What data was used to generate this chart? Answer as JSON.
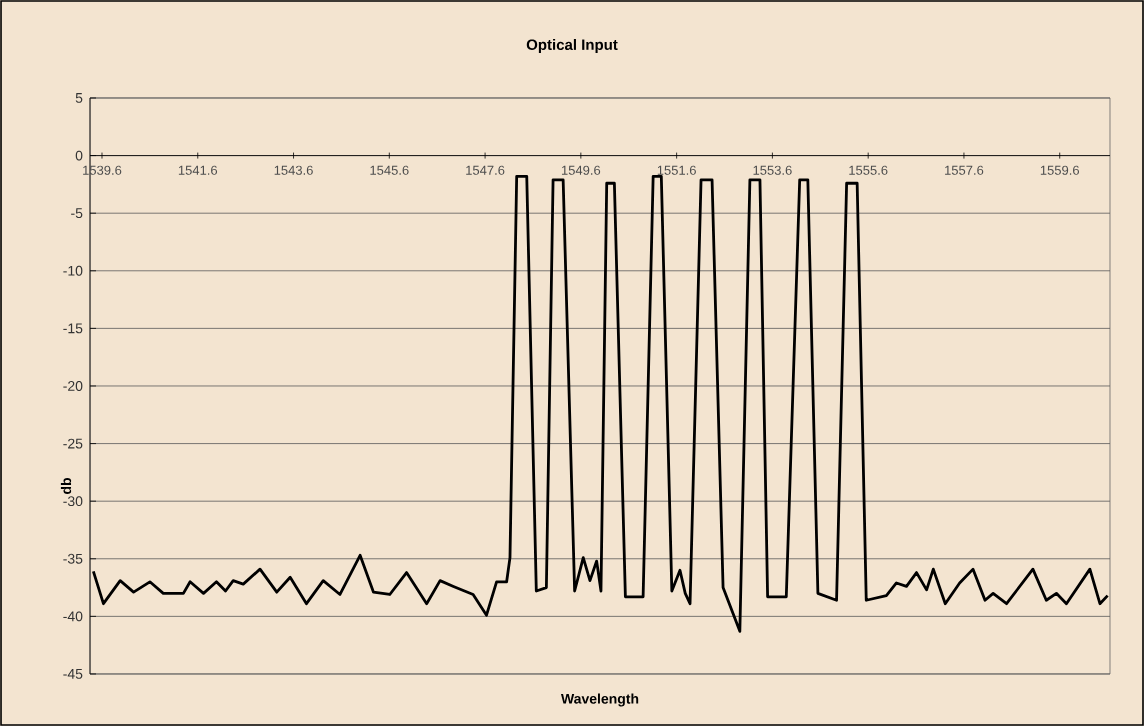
{
  "chart_data": {
    "type": "line",
    "title": "Optical Input",
    "xlabel": "Wavelength",
    "ylabel": "db",
    "xlim": [
      1539.35,
      1560.65
    ],
    "xticks": [
      1539.6,
      1541.6,
      1543.6,
      1545.6,
      1547.6,
      1549.6,
      1551.6,
      1553.6,
      1555.6,
      1557.6,
      1559.6
    ],
    "ylim": [
      -45,
      5
    ],
    "yticks": [
      -45,
      -40,
      -35,
      -30,
      -25,
      -20,
      -15,
      -10,
      -5,
      0,
      5
    ],
    "grid": "y",
    "marker": "none",
    "line_style": "solid",
    "series": [
      {
        "color": "#000000",
        "x": [
          1539.42,
          1539.63,
          1539.98,
          1540.26,
          1540.6,
          1540.88,
          1541.3,
          1541.44,
          1541.72,
          1541.99,
          1542.18,
          1542.34,
          1542.55,
          1542.9,
          1543.25,
          1543.53,
          1543.87,
          1544.22,
          1544.57,
          1544.99,
          1545.27,
          1545.61,
          1545.96,
          1546.38,
          1546.66,
          1546.94,
          1547.35,
          1547.63,
          1547.84,
          1548.05,
          1548.12,
          1548.26,
          1548.47,
          1548.67,
          1548.88,
          1549.02,
          1549.23,
          1549.47,
          1549.65,
          1549.79,
          1549.93,
          1550.02,
          1550.14,
          1550.3,
          1550.53,
          1550.9,
          1551.11,
          1551.28,
          1551.5,
          1551.67,
          1551.78,
          1551.88,
          1552.11,
          1552.34,
          1552.57,
          1552.92,
          1553.13,
          1553.34,
          1553.5,
          1553.89,
          1554.17,
          1554.34,
          1554.55,
          1554.94,
          1555.15,
          1555.37,
          1555.56,
          1555.98,
          1556.19,
          1556.4,
          1556.61,
          1556.82,
          1556.96,
          1557.21,
          1557.51,
          1557.79,
          1558.04,
          1558.21,
          1558.49,
          1559.04,
          1559.32,
          1559.53,
          1559.74,
          1560.23,
          1560.44,
          1560.6
        ],
        "values": [
          -36.1,
          -38.9,
          -36.9,
          -37.9,
          -37.0,
          -38.0,
          -38.0,
          -37.0,
          -38.0,
          -37.0,
          -37.8,
          -36.9,
          -37.2,
          -35.9,
          -37.9,
          -36.6,
          -38.9,
          -36.9,
          -38.1,
          -34.7,
          -37.9,
          -38.1,
          -36.2,
          -38.9,
          -36.9,
          -37.4,
          -38.1,
          -39.9,
          -37.0,
          -37.0,
          -34.9,
          -1.8,
          -1.8,
          -37.8,
          -37.5,
          -2.1,
          -2.1,
          -37.8,
          -34.9,
          -36.9,
          -35.2,
          -37.8,
          -2.4,
          -2.4,
          -38.3,
          -38.3,
          -1.8,
          -1.8,
          -37.8,
          -36.0,
          -38.0,
          -38.9,
          -2.1,
          -2.1,
          -37.5,
          -41.3,
          -2.1,
          -2.1,
          -38.3,
          -38.3,
          -2.1,
          -2.1,
          -38.0,
          -38.6,
          -2.4,
          -2.4,
          -38.6,
          -38.2,
          -37.1,
          -37.4,
          -36.2,
          -37.7,
          -35.9,
          -38.9,
          -37.1,
          -35.9,
          -38.6,
          -38.0,
          -38.9,
          -35.9,
          -38.6,
          -38.0,
          -38.9,
          -35.9,
          -38.9,
          -38.2
        ]
      }
    ]
  }
}
